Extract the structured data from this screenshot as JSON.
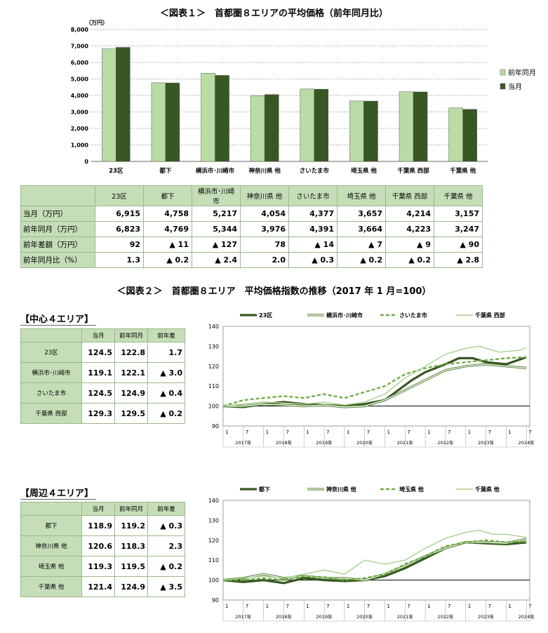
{
  "fig1": {
    "title": "＜図表１＞　首都圏８エリアの平均価格（前年同月比）",
    "unit": "（万円）",
    "chart_data": {
      "type": "bar",
      "categories": [
        "23区",
        "都下",
        "横浜市･川崎市",
        "神奈川県 他",
        "さいたま市",
        "埼玉県 他",
        "千葉県 西部",
        "千葉県 他"
      ],
      "series": [
        {
          "name": "前年同月",
          "values": [
            6823,
            4769,
            5344,
            3976,
            4391,
            3664,
            4223,
            3247
          ],
          "color": "#b9dca4"
        },
        {
          "name": "当月",
          "values": [
            6915,
            4758,
            5217,
            4054,
            4377,
            3657,
            4214,
            3157
          ],
          "color": "#385723"
        }
      ],
      "ylim": [
        0,
        8000
      ],
      "yticks": [
        "0",
        "1,000",
        "2,000",
        "3,000",
        "4,000",
        "5,000",
        "6,000",
        "7,000",
        "8,000"
      ],
      "legend": "right",
      "grid": true
    }
  },
  "table1": {
    "headers": [
      "23区",
      "都下",
      "横浜市･川崎市",
      "神奈川県 他",
      "さいたま市",
      "埼玉県 他",
      "千葉県 西部",
      "千葉県 他"
    ],
    "rows": [
      {
        "label": "当月（万円）",
        "cells": [
          "6,915",
          "4,758",
          "5,217",
          "4,054",
          "4,377",
          "3,657",
          "4,214",
          "3,157"
        ]
      },
      {
        "label": "前年同月（万円）",
        "cells": [
          "6,823",
          "4,769",
          "5,344",
          "3,976",
          "4,391",
          "3,664",
          "4,223",
          "3,247"
        ]
      },
      {
        "label": "前年差額（万円）",
        "cells": [
          "92",
          "▲ 11",
          "▲ 127",
          "78",
          "▲ 14",
          "▲ 7",
          "▲ 9",
          "▲ 90"
        ]
      },
      {
        "label": "前年同月比（%）",
        "cells": [
          "1.3",
          "▲ 0.2",
          "▲ 2.4",
          "2.0",
          "▲ 0.3",
          "▲ 0.2",
          "▲ 0.2",
          "▲ 2.8"
        ]
      }
    ]
  },
  "fig2": {
    "title": "＜図表２＞　首都圏８エリア　平均価格指数の推移（2017 年 1 月=100）"
  },
  "center": {
    "subtitle": "【中心４エリア】",
    "headers": [
      "当月",
      "前年同月",
      "前年差"
    ],
    "rows": [
      {
        "label": "23区",
        "cells": [
          "124.5",
          "122.8",
          "1.7"
        ]
      },
      {
        "label": "横浜市･川崎市",
        "cells": [
          "119.1",
          "122.1",
          "▲ 3.0"
        ]
      },
      {
        "label": "さいたま市",
        "cells": [
          "124.5",
          "124.9",
          "▲ 0.4"
        ]
      },
      {
        "label": "千葉県 西部",
        "cells": [
          "129.3",
          "129.5",
          "▲ 0.2"
        ]
      }
    ]
  },
  "outer": {
    "subtitle": "【周辺４エリア】",
    "headers": [
      "当月",
      "前年同月",
      "前年差"
    ],
    "rows": [
      {
        "label": "都下",
        "cells": [
          "118.9",
          "119.2",
          "▲ 0.3"
        ]
      },
      {
        "label": "神奈川県 他",
        "cells": [
          "120.6",
          "118.3",
          "2.3"
        ]
      },
      {
        "label": "埼玉県 他",
        "cells": [
          "119.3",
          "119.5",
          "▲ 0.2"
        ]
      },
      {
        "label": "千葉県 他",
        "cells": [
          "121.4",
          "124.9",
          "▲ 3.5"
        ]
      }
    ]
  },
  "chart_data": [
    {
      "type": "line",
      "x_month_ticks": [
        "1",
        "7",
        "1",
        "7",
        "1",
        "7",
        "1",
        "7",
        "1",
        "7",
        "1",
        "7",
        "1",
        "7",
        "1",
        "7"
      ],
      "year_labels": [
        "2017年",
        "2018年",
        "2019年",
        "2020年",
        "2021年",
        "2022年",
        "2023年",
        "2024年"
      ],
      "ylim": [
        90,
        140
      ],
      "yticks": [
        "90",
        "100",
        "110",
        "120",
        "130",
        "140"
      ],
      "legend": "top",
      "series": [
        {
          "name": "23区",
          "style": "thick",
          "color": "#385723",
          "points": [
            [
              0,
              100
            ],
            [
              6,
              99.5
            ],
            [
              12,
              101
            ],
            [
              18,
              102
            ],
            [
              24,
              101
            ],
            [
              30,
              100.5
            ],
            [
              36,
              100
            ],
            [
              42,
              101
            ],
            [
              48,
              103
            ],
            [
              52,
              108
            ],
            [
              56,
              113
            ],
            [
              60,
              117
            ],
            [
              66,
              121
            ],
            [
              70,
              124
            ],
            [
              74,
              124
            ],
            [
              78,
              122
            ],
            [
              84,
              121
            ],
            [
              90,
              124.5
            ]
          ]
        },
        {
          "name": "横浜市･川崎市",
          "style": "double",
          "color": "#548235",
          "points": [
            [
              0,
              100
            ],
            [
              6,
              100
            ],
            [
              12,
              101
            ],
            [
              18,
              100.5
            ],
            [
              24,
              100
            ],
            [
              30,
              100.5
            ],
            [
              36,
              99.5
            ],
            [
              42,
              100
            ],
            [
              48,
              103
            ],
            [
              54,
              108
            ],
            [
              60,
              113
            ],
            [
              66,
              118
            ],
            [
              72,
              120
            ],
            [
              78,
              121
            ],
            [
              84,
              120
            ],
            [
              90,
              119.1
            ]
          ]
        },
        {
          "name": "さいたま市",
          "style": "dashed",
          "color": "#70ad47",
          "points": [
            [
              0,
              100
            ],
            [
              6,
              103
            ],
            [
              12,
              104
            ],
            [
              18,
              105
            ],
            [
              24,
              104
            ],
            [
              30,
              106
            ],
            [
              36,
              104
            ],
            [
              42,
              107
            ],
            [
              48,
              110
            ],
            [
              54,
              116
            ],
            [
              60,
              119
            ],
            [
              66,
              121
            ],
            [
              72,
              122
            ],
            [
              78,
              123
            ],
            [
              84,
              124
            ],
            [
              90,
              124.5
            ]
          ]
        },
        {
          "name": "千葉県 西部",
          "style": "thin",
          "color": "#a9d18e",
          "points": [
            [
              0,
              100
            ],
            [
              6,
              101
            ],
            [
              12,
              102
            ],
            [
              18,
              101.5
            ],
            [
              24,
              101
            ],
            [
              30,
              102
            ],
            [
              36,
              100.5
            ],
            [
              42,
              102
            ],
            [
              48,
              106
            ],
            [
              54,
              114
            ],
            [
              60,
              120
            ],
            [
              66,
              126
            ],
            [
              72,
              129
            ],
            [
              76,
              130
            ],
            [
              82,
              127
            ],
            [
              88,
              128
            ],
            [
              90,
              129.3
            ]
          ]
        }
      ]
    },
    {
      "type": "line",
      "x_month_ticks": [
        "1",
        "7",
        "1",
        "7",
        "1",
        "7",
        "1",
        "7",
        "1",
        "7",
        "1",
        "7",
        "1",
        "7",
        "1",
        "7"
      ],
      "year_labels": [
        "2017年",
        "2018年",
        "2019年",
        "2020年",
        "2021年",
        "2022年",
        "2023年",
        "2024年"
      ],
      "ylim": [
        90,
        140
      ],
      "yticks": [
        "90",
        "100",
        "110",
        "120",
        "130",
        "140"
      ],
      "legend": "top",
      "series": [
        {
          "name": "都下",
          "style": "thick",
          "color": "#385723",
          "points": [
            [
              0,
              100
            ],
            [
              6,
              99
            ],
            [
              12,
              100
            ],
            [
              18,
              98.5
            ],
            [
              24,
              101
            ],
            [
              30,
              100
            ],
            [
              36,
              99.5
            ],
            [
              42,
              100
            ],
            [
              48,
              102
            ],
            [
              54,
              106
            ],
            [
              60,
              111
            ],
            [
              66,
              116
            ],
            [
              72,
              119
            ],
            [
              78,
              118.5
            ],
            [
              84,
              118
            ],
            [
              90,
              118.9
            ]
          ]
        },
        {
          "name": "神奈川県 他",
          "style": "double",
          "color": "#548235",
          "points": [
            [
              0,
              100
            ],
            [
              6,
              101
            ],
            [
              12,
              103
            ],
            [
              18,
              101
            ],
            [
              24,
              102
            ],
            [
              30,
              101
            ],
            [
              36,
              101
            ],
            [
              42,
              100
            ],
            [
              48,
              103
            ],
            [
              54,
              107
            ],
            [
              60,
              112
            ],
            [
              66,
              116
            ],
            [
              72,
              119
            ],
            [
              78,
              119
            ],
            [
              84,
              118.5
            ],
            [
              90,
              120.6
            ]
          ]
        },
        {
          "name": "埼玉県 他",
          "style": "dashed",
          "color": "#70ad47",
          "points": [
            [
              0,
              100
            ],
            [
              6,
              100
            ],
            [
              12,
              101
            ],
            [
              18,
              100
            ],
            [
              24,
              102
            ],
            [
              30,
              101.5
            ],
            [
              36,
              100
            ],
            [
              42,
              101
            ],
            [
              48,
              103
            ],
            [
              54,
              108
            ],
            [
              60,
              112
            ],
            [
              66,
              117
            ],
            [
              72,
              119
            ],
            [
              78,
              120
            ],
            [
              84,
              119
            ],
            [
              90,
              119.3
            ]
          ]
        },
        {
          "name": "千葉県 他",
          "style": "thin",
          "color": "#a9d18e",
          "points": [
            [
              0,
              100
            ],
            [
              6,
              101
            ],
            [
              12,
              102
            ],
            [
              18,
              101
            ],
            [
              24,
              103
            ],
            [
              30,
              105
            ],
            [
              36,
              103
            ],
            [
              42,
              110
            ],
            [
              48,
              108
            ],
            [
              54,
              110
            ],
            [
              60,
              116
            ],
            [
              66,
              121
            ],
            [
              72,
              124
            ],
            [
              76,
              125
            ],
            [
              80,
              123
            ],
            [
              84,
              123
            ],
            [
              90,
              121.4
            ]
          ]
        }
      ]
    }
  ]
}
